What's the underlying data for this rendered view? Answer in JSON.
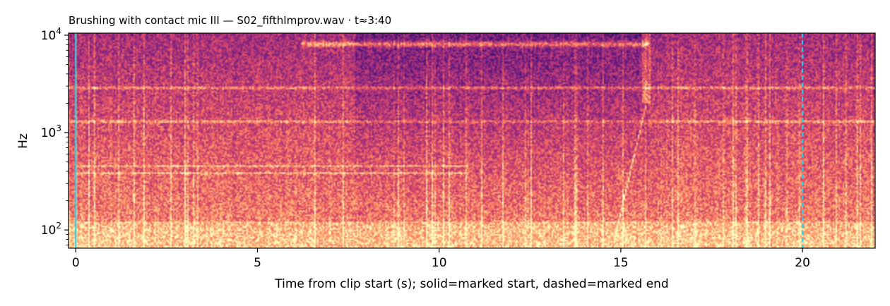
{
  "chart_data": {
    "type": "heatmap",
    "title": "Brushing with contact mic III  —  S02_fifthImprov.wav · t≈3:40",
    "xlabel": "Time from clip start (s); solid=marked start, dashed=marked end",
    "ylabel": "Hz",
    "x_range": [
      -0.2,
      22.0
    ],
    "y_range": [
      65,
      10500
    ],
    "y_scale": "log",
    "x_ticks": [
      {
        "value": 0,
        "label": "0"
      },
      {
        "value": 5,
        "label": "5"
      },
      {
        "value": 10,
        "label": "10"
      },
      {
        "value": 15,
        "label": "15"
      },
      {
        "value": 20,
        "label": "20"
      }
    ],
    "y_ticks": [
      {
        "value": 100,
        "base": "10",
        "exp": "2"
      },
      {
        "value": 1000,
        "base": "10",
        "exp": "3"
      },
      {
        "value": 10000,
        "base": "10",
        "exp": "4"
      }
    ],
    "colormap": "magma",
    "marker_color": "#22d3ee",
    "markers": [
      {
        "name": "marked start",
        "x": 0.0,
        "style": "solid"
      },
      {
        "name": "marked end",
        "x": 20.0,
        "style": "dashed"
      }
    ],
    "harmonic_bands_hz": [
      1300,
      2900,
      450,
      380
    ],
    "sweep_band": {
      "x_start": 6.2,
      "x_end": 15.8,
      "y_hz": 8200
    },
    "quiet_segments": [
      [
        7.7,
        15.8
      ]
    ],
    "chirp": {
      "x_start": 14.8,
      "x_end": 15.7,
      "y_from_hz": 70,
      "y_to_hz": 1900
    }
  }
}
